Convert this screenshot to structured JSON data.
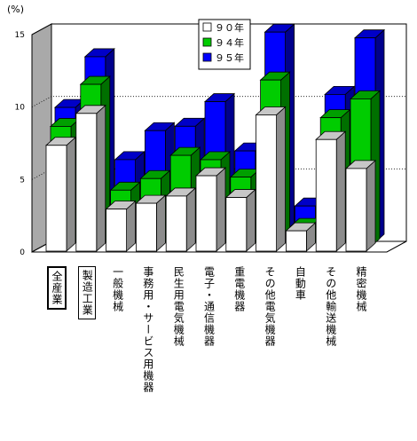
{
  "chart_data": {
    "type": "bar",
    "ylabel": "(%)",
    "ylim": [
      0,
      15
    ],
    "yticks": [
      0,
      5,
      10,
      15
    ],
    "legend_position": "top-center",
    "categories": [
      "全産業",
      "製造工業",
      "一般機械",
      "事務用・サービス用機器",
      "民生用電気機械",
      "電子・通信機器",
      "重電機器",
      "その他電気機器",
      "自動車",
      "その他輸送機械",
      "精密機械"
    ],
    "series": [
      {
        "name": "９０年",
        "color": "#ffffff",
        "values": [
          7.3,
          9.5,
          2.9,
          3.3,
          3.8,
          5.2,
          3.7,
          9.4,
          1.4,
          7.7,
          5.7
        ]
      },
      {
        "name": "９４年",
        "color": "#00cc00",
        "values": [
          8.3,
          11.2,
          3.9,
          4.7,
          6.3,
          6.0,
          4.8,
          11.5,
          1.4,
          8.9,
          10.2
        ]
      },
      {
        "name": "９５年",
        "color": "#0000ff",
        "values": [
          9.3,
          12.8,
          5.7,
          7.7,
          8.0,
          9.7,
          6.3,
          14.5,
          2.5,
          10.2,
          14.1
        ]
      }
    ]
  }
}
